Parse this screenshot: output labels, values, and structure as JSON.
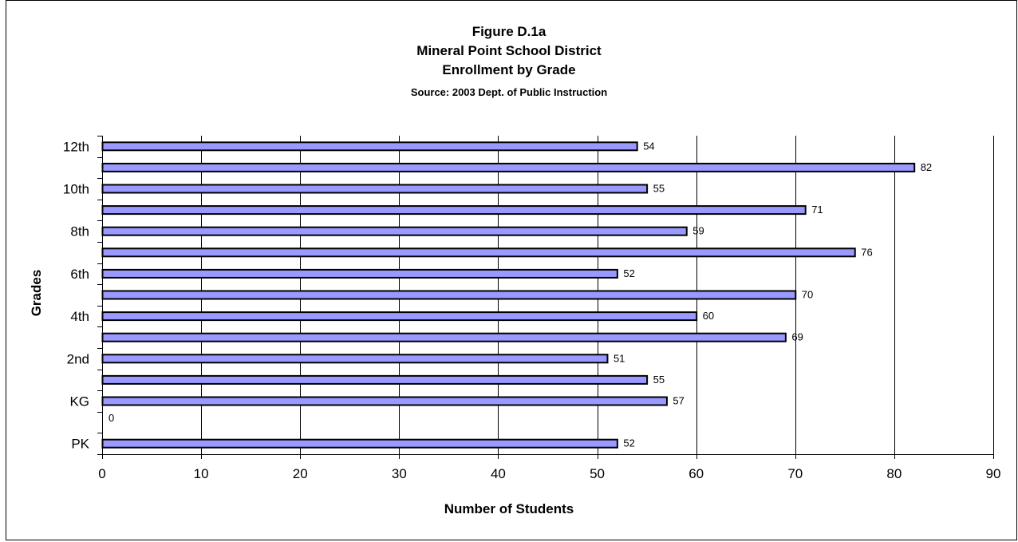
{
  "chart_data": {
    "type": "bar",
    "orientation": "horizontal",
    "title": "Figure D.1a",
    "subtitle": "Mineral Point School District",
    "subtitle2": "Enrollment by Grade",
    "source": "Source:  2003 Dept. of Public Instruction",
    "xlabel": "Number of Students",
    "ylabel": "Grades",
    "xlim": [
      0,
      90
    ],
    "xticks": [
      0,
      10,
      20,
      30,
      40,
      50,
      60,
      70,
      80,
      90
    ],
    "categories": [
      "PK",
      "",
      "KG",
      "",
      "2nd",
      "",
      "4th",
      "",
      "6th",
      "",
      "8th",
      "",
      "10th",
      "",
      "12th"
    ],
    "values": [
      52,
      0,
      57,
      55,
      51,
      69,
      60,
      70,
      52,
      76,
      59,
      71,
      55,
      82,
      54
    ],
    "bar_color": "#9999ff",
    "bar_edge_color": "#000000",
    "grid": true,
    "gridline_orientation": "vertical"
  }
}
